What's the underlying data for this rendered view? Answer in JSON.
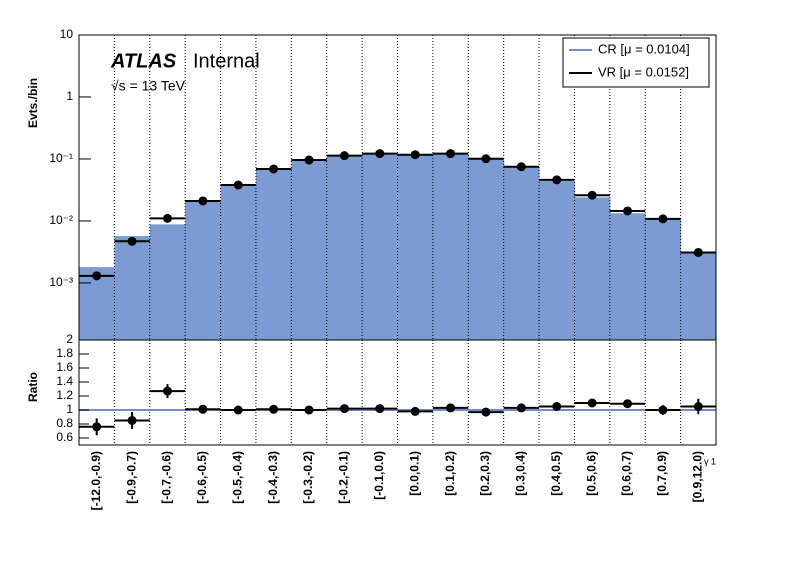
{
  "chart_data": [
    {
      "type": "histogram-log",
      "y_label": "Evts./bin",
      "atlas": "ATLAS",
      "atlas_status": "Internal",
      "energy": "√s = 13 TeV",
      "log_y": true,
      "grid": true,
      "legend": "upper right",
      "ylim": [
        0.00012,
        10
      ],
      "yticks": [
        10,
        1,
        {
          "value": 0.1,
          "label": "10⁻¹"
        },
        {
          "value": 0.01,
          "label": "10⁻²"
        },
        {
          "value": 0.001,
          "label": "10⁻³"
        }
      ],
      "series": [
        {
          "name": "CR [μ = 0.0104]",
          "color": "#7b9bd2",
          "values": [
            0.0018,
            0.0057,
            0.0088,
            0.021,
            0.038,
            0.068,
            0.096,
            0.11,
            0.12,
            0.118,
            0.118,
            0.104,
            0.073,
            0.044,
            0.024,
            0.0133,
            0.0107,
            0.003
          ]
        },
        {
          "name": "VR [μ = 0.0152]",
          "color": "#000000",
          "values": [
            0.0013,
            0.0047,
            0.011,
            0.021,
            0.038,
            0.069,
            0.096,
            0.113,
            0.122,
            0.117,
            0.122,
            0.101,
            0.075,
            0.046,
            0.026,
            0.0145,
            0.0108,
            0.0031
          ]
        }
      ]
    },
    {
      "type": "ratio",
      "y_label": "Ratio",
      "x_label": "γ 1",
      "grid": true,
      "ylim": [
        0.5,
        2
      ],
      "yticks": [
        0.6,
        0.8,
        1,
        1.2,
        1.4,
        1.6,
        1.8,
        2
      ],
      "reference": 1,
      "reference_color": "#6b8fc8",
      "categories": [
        "[-12.0,-0.9)",
        "[-0.9,-0.7)",
        "[-0.7,-0.6)",
        "[-0.6,-0.5)",
        "[-0.5,-0.4)",
        "[-0.4,-0.3)",
        "[-0.3,-0.2)",
        "[-0.2,-0.1)",
        "[-0.1,0.0)",
        "[0.0,0.1)",
        "[0.1,0.2)",
        "[0.2,0.3)",
        "[0.3,0.4)",
        "[0.4,0.5)",
        "[0.5,0.6)",
        "[0.6,0.7)",
        "[0.7,0.9)",
        "[0.9,12.0)"
      ],
      "values": [
        0.76,
        0.85,
        1.27,
        1.01,
        1.0,
        1.01,
        1.0,
        1.02,
        1.02,
        0.98,
        1.03,
        0.97,
        1.03,
        1.05,
        1.1,
        1.09,
        1.0,
        1.05
      ],
      "errors": [
        0.12,
        0.12,
        0.1,
        0.05,
        0.03,
        0.03,
        0.03,
        0.03,
        0.03,
        0.03,
        0.03,
        0.03,
        0.03,
        0.04,
        0.05,
        0.06,
        0.07,
        0.11
      ]
    }
  ]
}
